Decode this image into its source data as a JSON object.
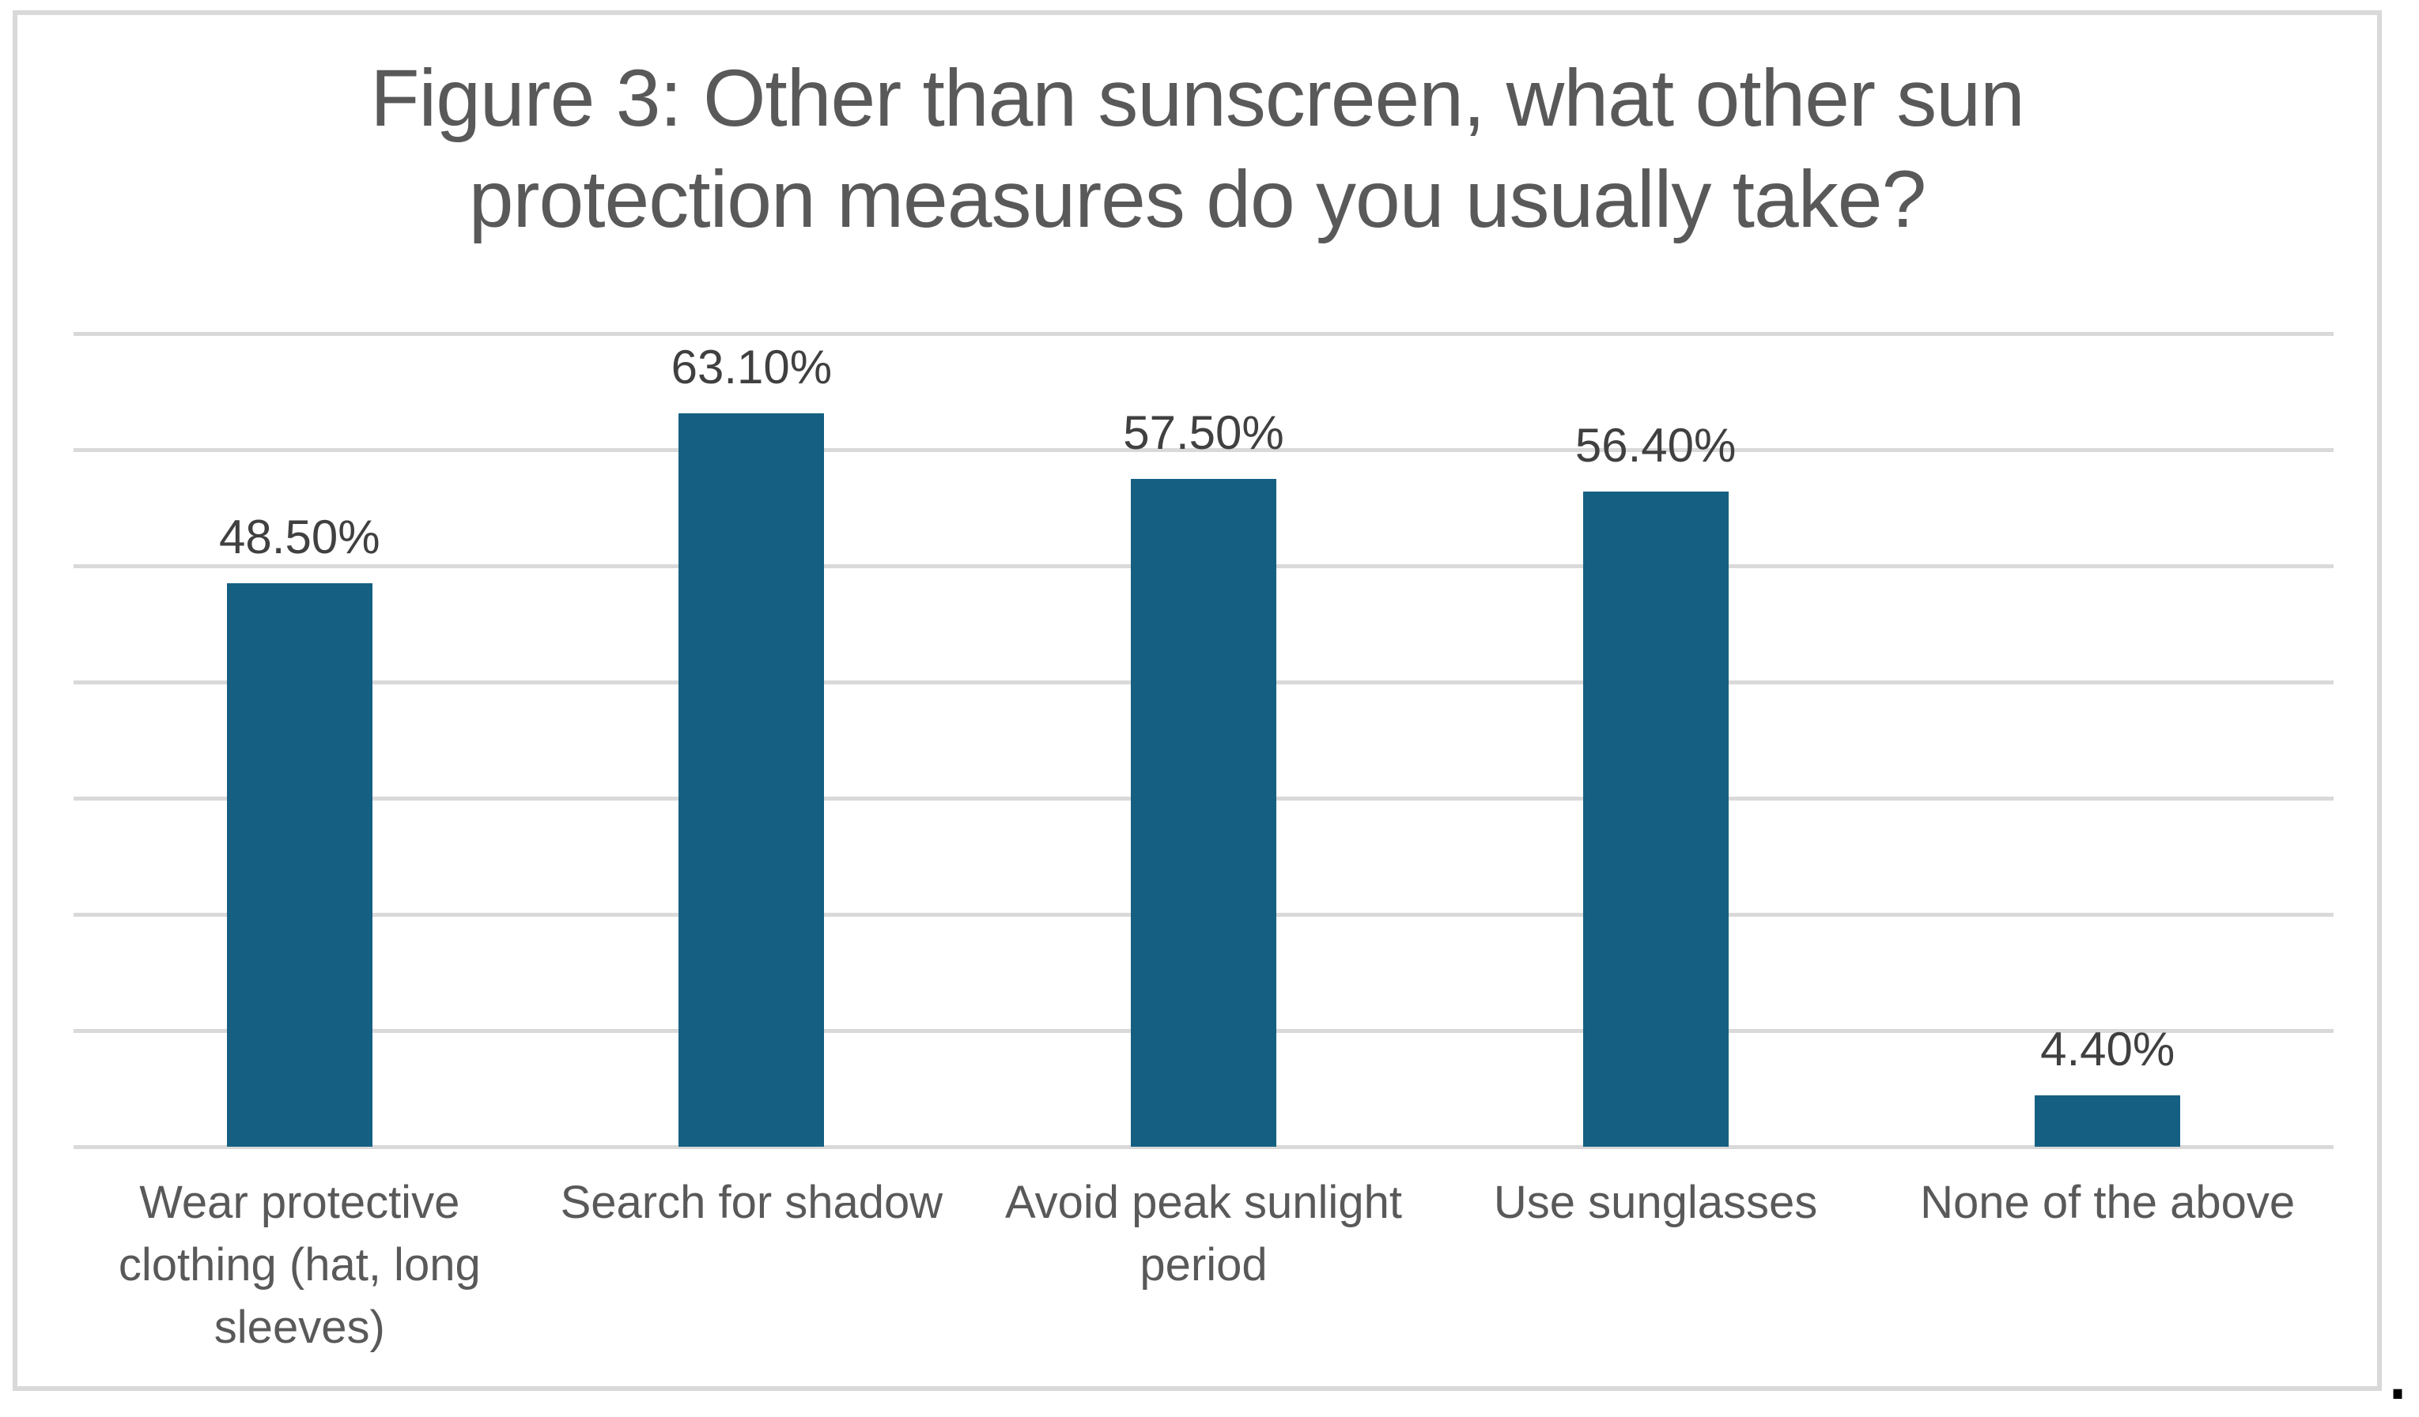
{
  "page": {
    "trailing_period": "."
  },
  "chart_data": {
    "type": "bar",
    "title": "Figure 3: Other than sunscreen, what other sun protection measures do you usually take?",
    "title_lines": [
      "Figure 3: Other than sunscreen, what other sun",
      "protection measures do you usually take?"
    ],
    "categories": [
      "Wear protective clothing (hat, long sleeves)",
      "Search for shadow",
      "Avoid peak sunlight period",
      "Use sunglasses",
      "None of the above"
    ],
    "category_lines": [
      [
        "Wear protective",
        "clothing (hat, long",
        "sleeves)"
      ],
      [
        "Search for shadow"
      ],
      [
        "Avoid peak sunlight",
        "period"
      ],
      [
        "Use sunglasses"
      ],
      [
        "None of the above"
      ]
    ],
    "values": [
      48.5,
      63.1,
      57.5,
      56.4,
      4.4
    ],
    "data_labels": [
      "48.50%",
      "63.10%",
      "57.50%",
      "56.40%",
      "4.40%"
    ],
    "xlabel": "",
    "ylabel": "",
    "ylim": [
      0,
      70
    ],
    "grid_step": 10,
    "grid": true,
    "legend": false,
    "y_tick_labels_visible": false,
    "bar_color": "#156082",
    "gridline_color": "#D9D9D9",
    "frame_border_color": "#D9D9D9",
    "title_color": "#595959",
    "data_label_color": "#404040",
    "axis_label_color": "#595959"
  }
}
